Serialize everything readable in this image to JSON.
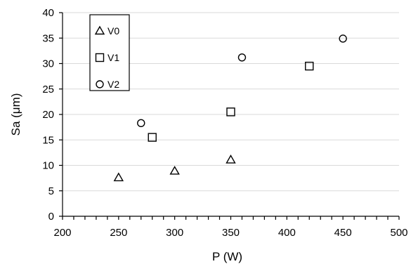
{
  "chart_data": {
    "type": "scatter",
    "title": "",
    "xlabel": "P (W)",
    "ylabel": "Sa (μm)",
    "xlim": [
      200,
      500
    ],
    "ylim": [
      0,
      40
    ],
    "x_ticks": [
      200,
      250,
      300,
      350,
      400,
      450,
      500
    ],
    "y_ticks": [
      0,
      5,
      10,
      15,
      20,
      25,
      30,
      35,
      40
    ],
    "x_minor_step": 10,
    "grid": true,
    "legend_position": "top-left",
    "series": [
      {
        "name": "V0",
        "marker": "triangle",
        "color": "#000000",
        "points": [
          {
            "x": 250,
            "y": 7.6
          },
          {
            "x": 300,
            "y": 8.9
          },
          {
            "x": 350,
            "y": 11.1
          }
        ]
      },
      {
        "name": "V1",
        "marker": "square",
        "color": "#000000",
        "points": [
          {
            "x": 280,
            "y": 15.5
          },
          {
            "x": 350,
            "y": 20.5
          },
          {
            "x": 420,
            "y": 29.5
          }
        ]
      },
      {
        "name": "V2",
        "marker": "circle",
        "color": "#000000",
        "points": [
          {
            "x": 270,
            "y": 18.3
          },
          {
            "x": 360,
            "y": 31.2
          },
          {
            "x": 450,
            "y": 34.9
          }
        ]
      }
    ]
  }
}
